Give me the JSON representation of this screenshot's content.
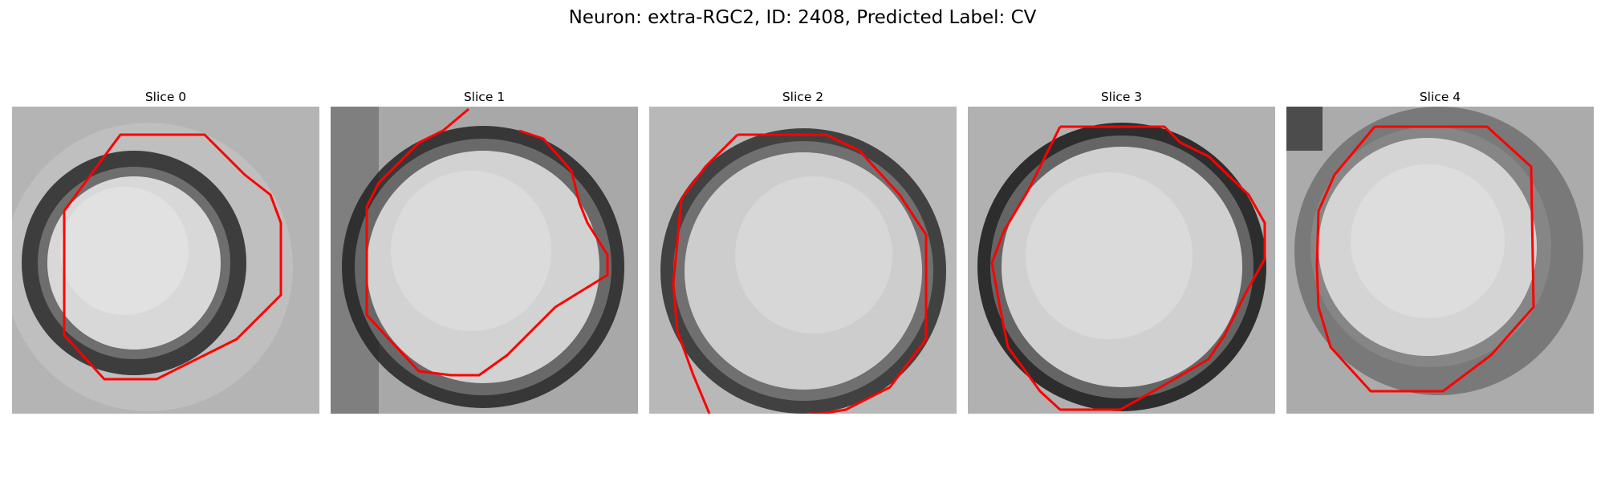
{
  "figure": {
    "title": "Neuron: extra-RGC2, ID: 2408, Predicted Label: CV",
    "panels": [
      {
        "title": "Slice 0"
      },
      {
        "title": "Slice 1"
      },
      {
        "title": "Slice 2"
      },
      {
        "title": "Slice 3"
      },
      {
        "title": "Slice 4"
      }
    ]
  },
  "colors": {
    "contour": "#ff0000",
    "background": "#ffffff"
  }
}
